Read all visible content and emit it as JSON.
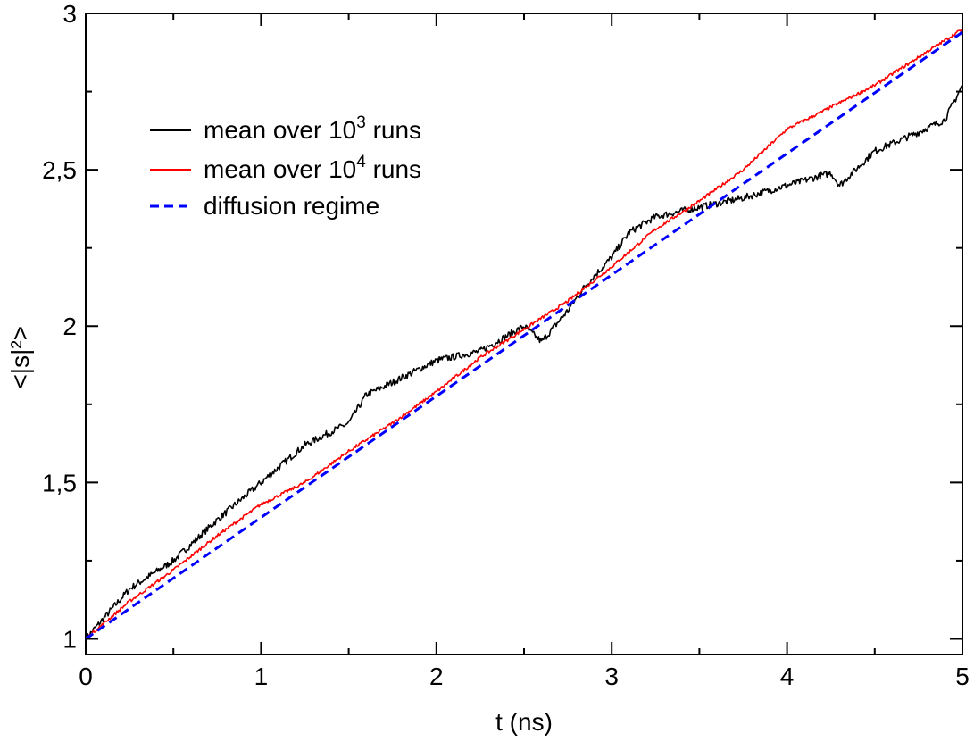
{
  "chart_data": {
    "type": "line",
    "xlabel": "t (ns)",
    "ylabel": "<|s|²>",
    "xlim": [
      0,
      5
    ],
    "ylim": [
      0.95,
      3
    ],
    "x_ticks": [
      0,
      1,
      2,
      3,
      4,
      5
    ],
    "x_tick_labels": [
      "0",
      "1",
      "2",
      "3",
      "4",
      "5"
    ],
    "y_ticks": [
      1,
      1.5,
      2,
      2.5,
      3
    ],
    "y_tick_labels": [
      "1",
      "1,5",
      "2",
      "2,5",
      "3"
    ],
    "grid": false,
    "legend_position": "top-left",
    "legend": {
      "entry1_prefix": "mean over 10",
      "entry1_sup": "3",
      "entry1_suffix": " runs",
      "entry2_prefix": "mean over 10",
      "entry2_sup": "4",
      "entry2_suffix": " runs",
      "entry3": "diffusion regime"
    },
    "series": [
      {
        "color": "#000000",
        "style": "solid",
        "x": [
          0,
          0.25,
          0.5,
          0.75,
          1.0,
          1.25,
          1.5,
          1.6,
          1.75,
          2.0,
          2.25,
          2.5,
          2.6,
          2.75,
          2.85,
          3.0,
          3.1,
          3.25,
          3.5,
          3.75,
          4.0,
          4.25,
          4.3,
          4.5,
          4.75,
          4.9,
          5.0
        ],
        "values": [
          1.0,
          1.16,
          1.25,
          1.38,
          1.5,
          1.62,
          1.69,
          1.78,
          1.82,
          1.89,
          1.92,
          2.0,
          1.95,
          2.05,
          2.13,
          2.22,
          2.3,
          2.35,
          2.38,
          2.41,
          2.45,
          2.49,
          2.45,
          2.56,
          2.62,
          2.66,
          2.77
        ]
      },
      {
        "color": "#ff0000",
        "style": "solid",
        "x": [
          0,
          0.25,
          0.5,
          0.75,
          1.0,
          1.25,
          1.5,
          1.75,
          2.0,
          2.25,
          2.5,
          2.75,
          3.0,
          3.25,
          3.5,
          3.75,
          4.0,
          4.25,
          4.5,
          4.75,
          5.0
        ],
        "values": [
          1.0,
          1.12,
          1.22,
          1.33,
          1.43,
          1.5,
          1.6,
          1.69,
          1.79,
          1.9,
          1.99,
          2.08,
          2.19,
          2.31,
          2.4,
          2.5,
          2.63,
          2.7,
          2.77,
          2.86,
          2.95
        ]
      },
      {
        "color": "#0000ff",
        "style": "dashed",
        "x": [
          0,
          5
        ],
        "values": [
          1.0,
          2.94
        ]
      }
    ]
  }
}
